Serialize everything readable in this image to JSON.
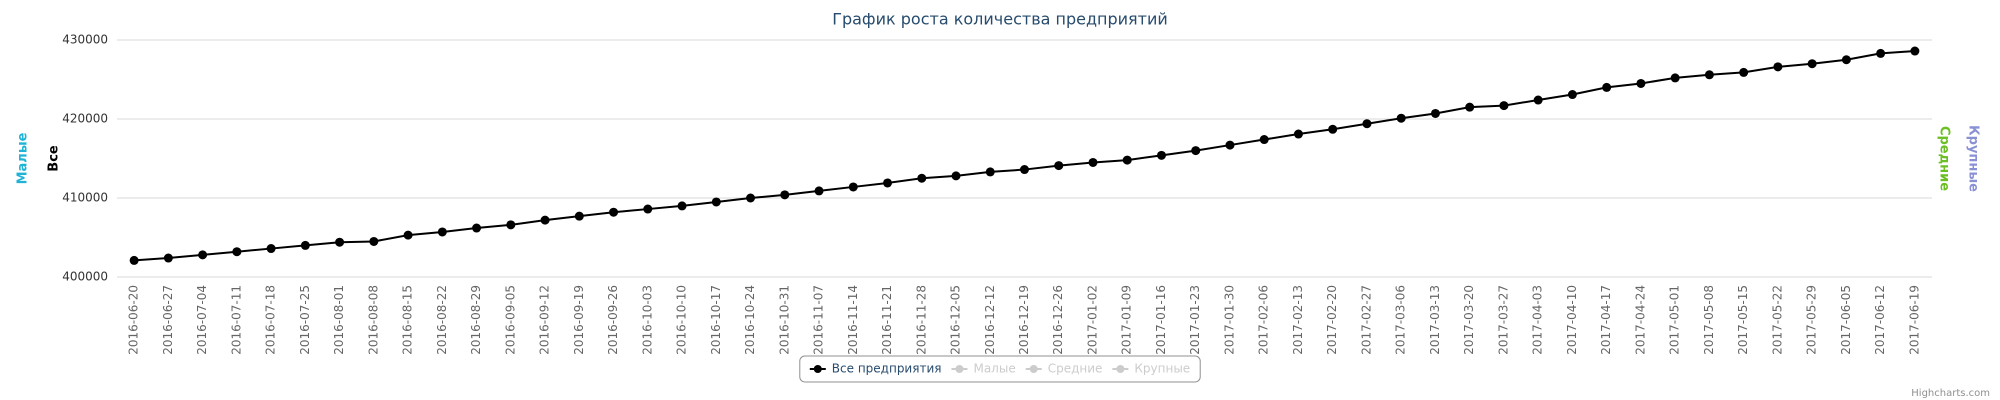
{
  "chart_data": {
    "type": "line",
    "title": "График роста количества предприятий",
    "categories": [
      "2016-06-20",
      "2016-06-27",
      "2016-07-04",
      "2016-07-11",
      "2016-07-18",
      "2016-07-25",
      "2016-08-01",
      "2016-08-08",
      "2016-08-15",
      "2016-08-22",
      "2016-08-29",
      "2016-09-05",
      "2016-09-12",
      "2016-09-19",
      "2016-09-26",
      "2016-10-03",
      "2016-10-10",
      "2016-10-17",
      "2016-10-24",
      "2016-10-31",
      "2016-11-07",
      "2016-11-14",
      "2016-11-21",
      "2016-11-28",
      "2016-12-05",
      "2016-12-12",
      "2016-12-19",
      "2016-12-26",
      "2017-01-02",
      "2017-01-09",
      "2017-01-16",
      "2017-01-23",
      "2017-01-30",
      "2017-02-06",
      "2017-02-13",
      "2017-02-20",
      "2017-02-27",
      "2017-03-06",
      "2017-03-13",
      "2017-03-20",
      "2017-03-27",
      "2017-04-03",
      "2017-04-10",
      "2017-04-17",
      "2017-04-24",
      "2017-05-01",
      "2017-05-08",
      "2017-05-15",
      "2017-05-22",
      "2017-05-29",
      "2017-06-05",
      "2017-06-12",
      "2017-06-19"
    ],
    "series": [
      {
        "name": "Все предприятия",
        "color": "#000000",
        "values": [
          402100,
          402400,
          402800,
          403200,
          403600,
          404000,
          404400,
          404500,
          405300,
          405700,
          406200,
          406600,
          407200,
          407700,
          408200,
          408600,
          409000,
          409500,
          410000,
          410400,
          410900,
          411400,
          411900,
          412500,
          412800,
          413300,
          413600,
          414100,
          414500,
          414800,
          415400,
          416000,
          416700,
          417400,
          418100,
          418700,
          419400,
          420100,
          420700,
          421500,
          421700,
          422400,
          423100,
          424000,
          424500,
          425200,
          425600,
          425900,
          426600,
          427000,
          427500,
          428300,
          428600
        ]
      }
    ],
    "hidden_series": [
      {
        "name": "Малые"
      },
      {
        "name": "Средние"
      },
      {
        "name": "Крупные"
      }
    ],
    "axis_titles_left": [
      {
        "text": "Малые",
        "color": "#1fb3d6"
      },
      {
        "text": "Все",
        "color": "#000000"
      }
    ],
    "axis_titles_right": [
      {
        "text": "Средние",
        "color": "#6bbf23"
      },
      {
        "text": "Крупные",
        "color": "#8a90d4"
      }
    ],
    "ylim": [
      400000,
      430000
    ],
    "yticks": [
      400000,
      410000,
      420000,
      430000
    ],
    "grid": true,
    "credits": "Highcharts.com"
  }
}
